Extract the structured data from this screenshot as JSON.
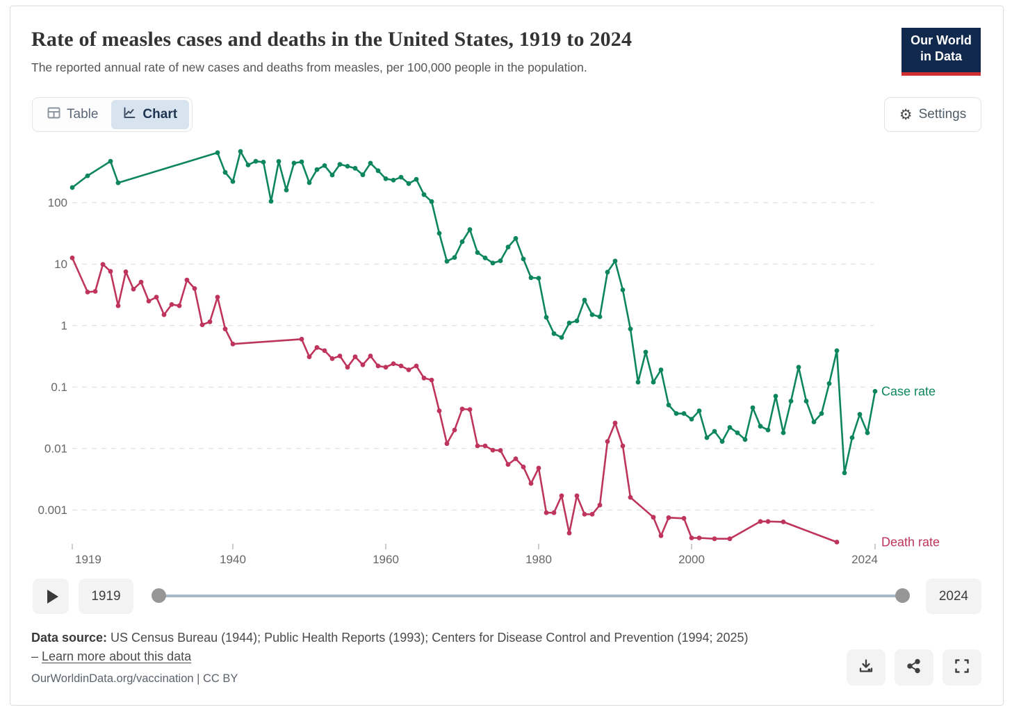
{
  "header": {
    "title": "Rate of measles cases and deaths in the United States, 1919 to 2024",
    "subtitle": "The reported annual rate of new cases and deaths from measles, per 100,000 people in the population.",
    "logo_line1": "Our World",
    "logo_line2": "in Data"
  },
  "toolbar": {
    "table_label": "Table",
    "chart_label": "Chart",
    "settings_label": "Settings"
  },
  "icons": {
    "gear_glyph": "⚙",
    "table": "table-grid-icon",
    "chart": "line-chart-icon",
    "play": "triangle-right",
    "download": "download-tray-arrow",
    "share": "share-nodes",
    "fullscreen": "expand-corners"
  },
  "timeline": {
    "start_year": "1919",
    "end_year": "2024"
  },
  "footer": {
    "source_prefix": "Data source:",
    "source_text": " US Census Bureau (1944); Public Health Reports (1993); Centers for Disease Control and Prevention (1994; 2025) – ",
    "learn_more": "Learn more about this data",
    "attribution": "OurWorldinData.org/vaccination | CC BY"
  },
  "colors": {
    "case_rate": "#0d865c",
    "death_rate": "#be345c",
    "logo_navy": "#12294e",
    "logo_red": "#d0302f",
    "active_tab_bg": "#d8e3f0",
    "gridline": "#d9d9d9",
    "axis_text": "#666666"
  },
  "chart_data": {
    "type": "line",
    "title": "Rate of measles cases and deaths in the United States, 1919 to 2024",
    "xlabel": "",
    "ylabel": "",
    "x_axis": {
      "range": [
        1919,
        2024
      ],
      "ticks": [
        1919,
        1940,
        1960,
        1980,
        2000,
        2024
      ]
    },
    "y_axis": {
      "scale": "log",
      "ticks": [
        100,
        10,
        1,
        0.1,
        0.01,
        0.001
      ],
      "range": [
        0.0002,
        900
      ],
      "gridlines": true
    },
    "legend_position": "line-end-labels",
    "series": [
      {
        "name": "Case rate",
        "color": "#0d865c",
        "points": [
          [
            1919,
            176
          ],
          [
            1921,
            273
          ],
          [
            1924,
            470
          ],
          [
            1925,
            210
          ],
          [
            1938,
            650
          ],
          [
            1939,
            310
          ],
          [
            1940,
            220
          ],
          [
            1941,
            680
          ],
          [
            1942,
            410
          ],
          [
            1943,
            470
          ],
          [
            1944,
            456
          ],
          [
            1945,
            105
          ],
          [
            1946,
            468
          ],
          [
            1947,
            160
          ],
          [
            1948,
            440
          ],
          [
            1949,
            460
          ],
          [
            1950,
            211
          ],
          [
            1951,
            344
          ],
          [
            1952,
            400
          ],
          [
            1953,
            281
          ],
          [
            1954,
            419
          ],
          [
            1955,
            390
          ],
          [
            1956,
            362
          ],
          [
            1957,
            283
          ],
          [
            1958,
            438
          ],
          [
            1959,
            330
          ],
          [
            1960,
            245
          ],
          [
            1961,
            232
          ],
          [
            1962,
            259
          ],
          [
            1963,
            204
          ],
          [
            1964,
            239
          ],
          [
            1965,
            135
          ],
          [
            1966,
            104
          ],
          [
            1967,
            31.7
          ],
          [
            1968,
            11.1
          ],
          [
            1969,
            12.8
          ],
          [
            1970,
            23.1
          ],
          [
            1971,
            36.4
          ],
          [
            1972,
            15.4
          ],
          [
            1973,
            12.6
          ],
          [
            1974,
            10.4
          ],
          [
            1975,
            11.3
          ],
          [
            1976,
            18.9
          ],
          [
            1977,
            26.1
          ],
          [
            1978,
            12.1
          ],
          [
            1979,
            6.0
          ],
          [
            1980,
            5.9
          ],
          [
            1981,
            1.36
          ],
          [
            1982,
            0.74
          ],
          [
            1983,
            0.64
          ],
          [
            1984,
            1.1
          ],
          [
            1985,
            1.19
          ],
          [
            1986,
            2.6
          ],
          [
            1987,
            1.5
          ],
          [
            1988,
            1.39
          ],
          [
            1989,
            7.4
          ],
          [
            1990,
            11.2
          ],
          [
            1991,
            3.8
          ],
          [
            1992,
            0.88
          ],
          [
            1993,
            0.12
          ],
          [
            1994,
            0.37
          ],
          [
            1995,
            0.12
          ],
          [
            1996,
            0.19
          ],
          [
            1997,
            0.051
          ],
          [
            1998,
            0.037
          ],
          [
            1999,
            0.037
          ],
          [
            2000,
            0.03
          ],
          [
            2001,
            0.041
          ],
          [
            2002,
            0.015
          ],
          [
            2003,
            0.019
          ],
          [
            2004,
            0.013
          ],
          [
            2005,
            0.022
          ],
          [
            2006,
            0.018
          ],
          [
            2007,
            0.014
          ],
          [
            2008,
            0.046
          ],
          [
            2009,
            0.023
          ],
          [
            2010,
            0.02
          ],
          [
            2011,
            0.071
          ],
          [
            2012,
            0.018
          ],
          [
            2013,
            0.059
          ],
          [
            2014,
            0.21
          ],
          [
            2015,
            0.059
          ],
          [
            2016,
            0.027
          ],
          [
            2017,
            0.037
          ],
          [
            2018,
            0.114
          ],
          [
            2019,
            0.39
          ],
          [
            2020,
            0.004
          ],
          [
            2021,
            0.015
          ],
          [
            2022,
            0.036
          ],
          [
            2023,
            0.018
          ],
          [
            2024,
            0.085
          ]
        ]
      },
      {
        "name": "Death rate",
        "color": "#be345c",
        "points": [
          [
            1919,
            12.6
          ],
          [
            1921,
            3.5
          ],
          [
            1922,
            3.6
          ],
          [
            1923,
            9.9
          ],
          [
            1924,
            7.6
          ],
          [
            1925,
            2.1
          ],
          [
            1926,
            7.5
          ],
          [
            1927,
            3.9
          ],
          [
            1928,
            5.1
          ],
          [
            1929,
            2.5
          ],
          [
            1930,
            2.9
          ],
          [
            1931,
            1.5
          ],
          [
            1932,
            2.2
          ],
          [
            1933,
            2.1
          ],
          [
            1934,
            5.5
          ],
          [
            1935,
            4.0
          ],
          [
            1936,
            1.03
          ],
          [
            1937,
            1.15
          ],
          [
            1938,
            2.9
          ],
          [
            1939,
            0.88
          ],
          [
            1940,
            0.5
          ],
          [
            1949,
            0.6
          ],
          [
            1950,
            0.31
          ],
          [
            1951,
            0.44
          ],
          [
            1952,
            0.39
          ],
          [
            1953,
            0.29
          ],
          [
            1954,
            0.32
          ],
          [
            1955,
            0.21
          ],
          [
            1956,
            0.31
          ],
          [
            1957,
            0.23
          ],
          [
            1958,
            0.32
          ],
          [
            1959,
            0.22
          ],
          [
            1960,
            0.21
          ],
          [
            1961,
            0.24
          ],
          [
            1962,
            0.22
          ],
          [
            1963,
            0.19
          ],
          [
            1964,
            0.22
          ],
          [
            1965,
            0.14
          ],
          [
            1966,
            0.13
          ],
          [
            1967,
            0.041
          ],
          [
            1968,
            0.012
          ],
          [
            1969,
            0.02
          ],
          [
            1970,
            0.044
          ],
          [
            1971,
            0.043
          ],
          [
            1972,
            0.011
          ],
          [
            1973,
            0.011
          ],
          [
            1974,
            0.0094
          ],
          [
            1975,
            0.0093
          ],
          [
            1976,
            0.0055
          ],
          [
            1977,
            0.0068
          ],
          [
            1978,
            0.005
          ],
          [
            1979,
            0.0027
          ],
          [
            1980,
            0.0048
          ],
          [
            1981,
            0.0009
          ],
          [
            1982,
            0.0009
          ],
          [
            1983,
            0.0017
          ],
          [
            1984,
            0.00042
          ],
          [
            1985,
            0.0017
          ],
          [
            1986,
            0.00085
          ],
          [
            1987,
            0.00085
          ],
          [
            1988,
            0.0012
          ],
          [
            1989,
            0.013
          ],
          [
            1990,
            0.026
          ],
          [
            1991,
            0.011
          ],
          [
            1992,
            0.0016
          ],
          [
            1995,
            0.00076
          ],
          [
            1996,
            0.00038
          ],
          [
            1997,
            0.00075
          ],
          [
            1999,
            0.00073
          ],
          [
            2000,
            0.00035
          ],
          [
            2001,
            0.00035
          ],
          [
            2003,
            0.00034
          ],
          [
            2005,
            0.00034
          ],
          [
            2009,
            0.00065
          ],
          [
            2010,
            0.00065
          ],
          [
            2012,
            0.00064
          ],
          [
            2019,
            0.0003
          ]
        ]
      }
    ]
  }
}
